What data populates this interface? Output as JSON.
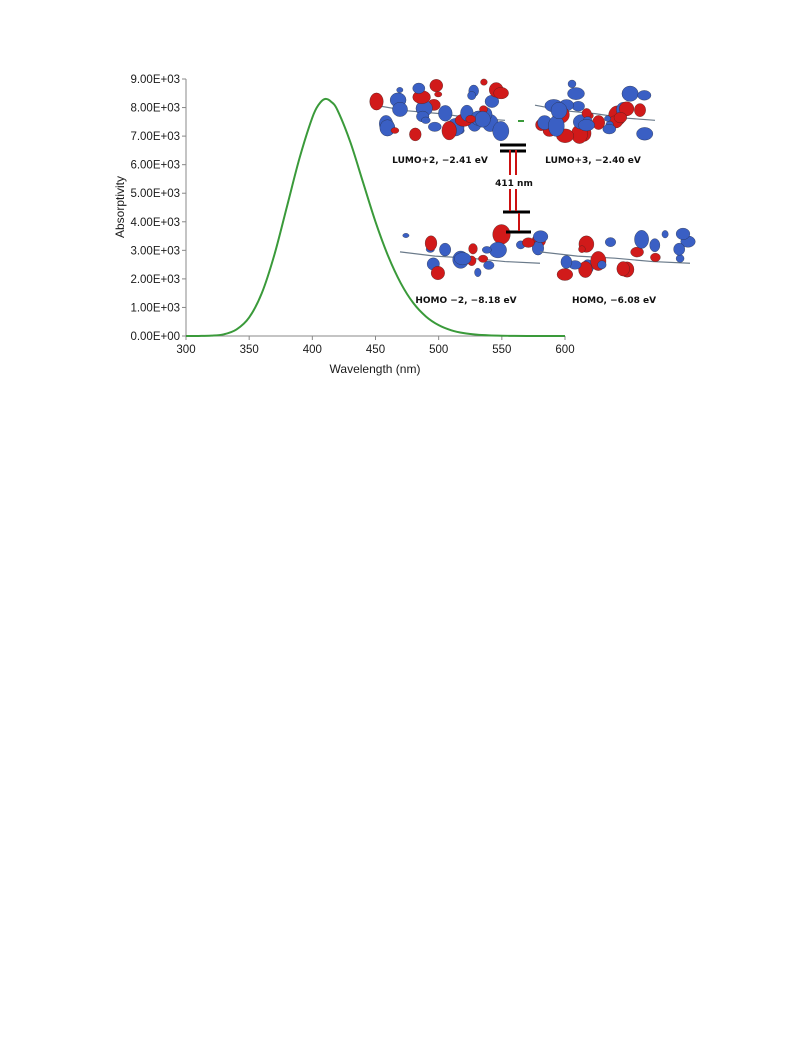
{
  "chart_data": {
    "type": "line",
    "title": "",
    "xlabel": "Wavelength (nm)",
    "ylabel": "Absorptivity",
    "xlim": [
      300,
      600
    ],
    "ylim": [
      0,
      9000
    ],
    "x_ticks": [
      300,
      350,
      400,
      450,
      500,
      550,
      600
    ],
    "x_tick_labels": [
      "300",
      "350",
      "400",
      "450",
      "500",
      "550",
      "600"
    ],
    "y_ticks": [
      0,
      1000,
      2000,
      3000,
      4000,
      5000,
      6000,
      7000,
      8000,
      9000
    ],
    "y_tick_labels": [
      "0.00E+00",
      "1.00E+03",
      "2.00E+03",
      "3.00E+03",
      "4.00E+03",
      "5.00E+03",
      "6.00E+03",
      "7.00E+03",
      "8.00E+03",
      "9.00E+03"
    ],
    "grid": false,
    "legend": "none",
    "series": [
      {
        "color": "#3a9a3a",
        "x": [
          300,
          310,
          320,
          330,
          340,
          350,
          360,
          370,
          380,
          390,
          400,
          405,
          410,
          415,
          420,
          430,
          440,
          450,
          460,
          470,
          480,
          490,
          500,
          510,
          520,
          530,
          540,
          550,
          560,
          570,
          580,
          590,
          600
        ],
        "y": [
          0,
          2,
          12,
          60,
          230,
          650,
          1500,
          2850,
          4550,
          6250,
          7650,
          8100,
          8300,
          8200,
          7900,
          6800,
          5400,
          4000,
          2800,
          1850,
          1150,
          680,
          380,
          200,
          100,
          48,
          22,
          10,
          4,
          1,
          0,
          0,
          0
        ]
      }
    ]
  },
  "annotations": {
    "orbitals": [
      {
        "id": "lumo2",
        "label": "LUMO+2, −2.41 eV"
      },
      {
        "id": "lumo3",
        "label": "LUMO+3, −2.40 eV"
      },
      {
        "id": "homo2",
        "label": "HOMO −2, −8.18 eV"
      },
      {
        "id": "homo",
        "label": "HOMO, −6.08 eV"
      }
    ],
    "transition_label": "411 nm"
  },
  "colors": {
    "curve": "#3a9a3a",
    "axis": "#888888",
    "lobe_red": "#d11a1a",
    "lobe_blue": "#3a5fc4",
    "transition_arrow": "#cc1111",
    "energy_level": "#000000"
  }
}
